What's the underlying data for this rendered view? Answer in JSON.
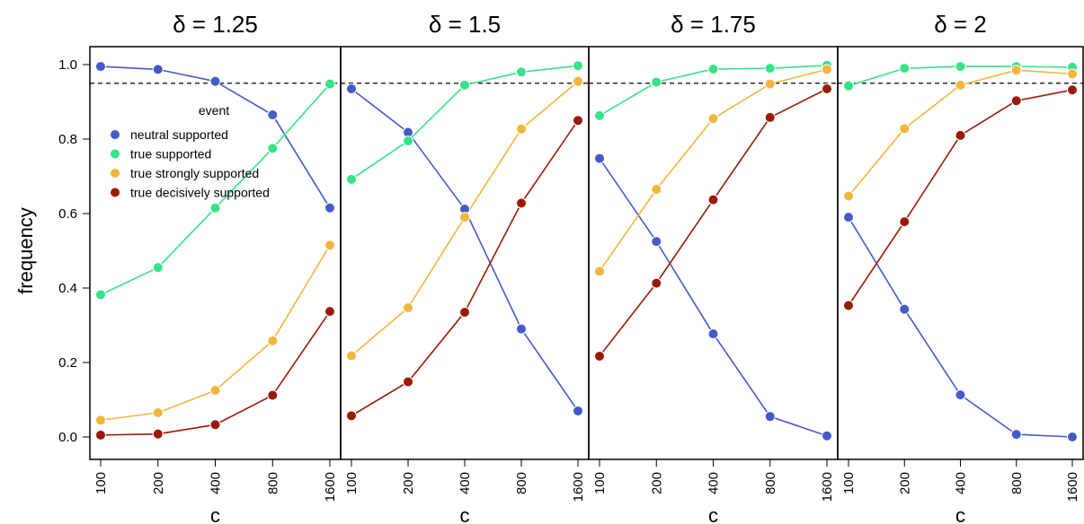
{
  "colors": {
    "neutral": "#4659c8",
    "true": "#36e388",
    "strong": "#f2b63c",
    "decisive": "#9b1a06",
    "threshold": "#000000"
  },
  "chart_data": {
    "type": "line",
    "ylabel": "frequency",
    "ylim": [
      0,
      1
    ],
    "y_ticks": [
      "0.0",
      "0.2",
      "0.4",
      "0.6",
      "0.8",
      "1.0"
    ],
    "x_categories": [
      "100",
      "200",
      "400",
      "800",
      "1600"
    ],
    "threshold": 0.95,
    "legend": {
      "title": "event",
      "position": "left, below threshold line in first panel",
      "entries": [
        {
          "key": "neutral",
          "label": "neutral supported"
        },
        {
          "key": "true",
          "label": "true supported"
        },
        {
          "key": "strong",
          "label": "true strongly supported"
        },
        {
          "key": "decisive",
          "label": "true decisively supported"
        }
      ]
    },
    "panels": [
      {
        "title": "δ = 1.25",
        "xlabel": "c",
        "series": [
          {
            "key": "neutral",
            "values": [
              0.995,
              0.987,
              0.955,
              0.865,
              0.615
            ]
          },
          {
            "key": "true",
            "values": [
              0.382,
              0.455,
              0.615,
              0.775,
              0.948
            ]
          },
          {
            "key": "strong",
            "values": [
              0.045,
              0.065,
              0.125,
              0.258,
              0.515
            ]
          },
          {
            "key": "decisive",
            "values": [
              0.005,
              0.008,
              0.033,
              0.112,
              0.337
            ]
          }
        ]
      },
      {
        "title": "δ = 1.5",
        "xlabel": "c",
        "series": [
          {
            "key": "neutral",
            "values": [
              0.935,
              0.818,
              0.612,
              0.29,
              0.07
            ]
          },
          {
            "key": "true",
            "values": [
              0.692,
              0.795,
              0.945,
              0.98,
              0.997
            ]
          },
          {
            "key": "strong",
            "values": [
              0.218,
              0.347,
              0.59,
              0.827,
              0.955
            ]
          },
          {
            "key": "decisive",
            "values": [
              0.057,
              0.148,
              0.335,
              0.628,
              0.85
            ]
          }
        ]
      },
      {
        "title": "δ = 1.75",
        "xlabel": "c",
        "series": [
          {
            "key": "neutral",
            "values": [
              0.748,
              0.525,
              0.277,
              0.055,
              0.003
            ]
          },
          {
            "key": "true",
            "values": [
              0.863,
              0.953,
              0.988,
              0.99,
              0.998
            ]
          },
          {
            "key": "strong",
            "values": [
              0.445,
              0.665,
              0.855,
              0.948,
              0.987
            ]
          },
          {
            "key": "decisive",
            "values": [
              0.217,
              0.413,
              0.637,
              0.858,
              0.935
            ]
          }
        ]
      },
      {
        "title": "δ = 2",
        "xlabel": "c",
        "series": [
          {
            "key": "neutral",
            "values": [
              0.59,
              0.343,
              0.113,
              0.007,
              0.0
            ]
          },
          {
            "key": "true",
            "values": [
              0.943,
              0.99,
              0.995,
              0.995,
              0.993
            ]
          },
          {
            "key": "strong",
            "values": [
              0.647,
              0.828,
              0.945,
              0.985,
              0.975
            ]
          },
          {
            "key": "decisive",
            "values": [
              0.353,
              0.578,
              0.81,
              0.903,
              0.932
            ]
          }
        ]
      }
    ]
  }
}
